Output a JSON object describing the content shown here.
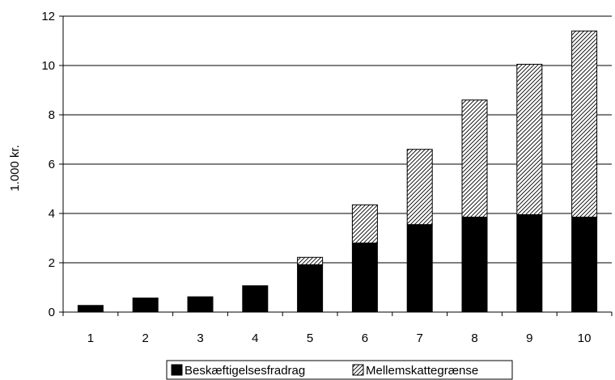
{
  "chart_data": {
    "type": "bar",
    "stacked": true,
    "categories": [
      "1",
      "2",
      "3",
      "4",
      "5",
      "6",
      "7",
      "8",
      "9",
      "10"
    ],
    "series": [
      {
        "name": "Beskæftigelsesfradrag",
        "fill": "solid",
        "color": "#000000",
        "values": [
          0.27,
          0.57,
          0.62,
          1.07,
          1.92,
          2.8,
          3.55,
          3.85,
          3.95,
          3.85
        ]
      },
      {
        "name": "Mellemskattegrænse",
        "fill": "hatched",
        "color": "#000000",
        "values": [
          0.0,
          0.0,
          0.0,
          0.0,
          0.3,
          1.55,
          3.05,
          4.75,
          6.1,
          7.55
        ]
      }
    ],
    "title": "",
    "xlabel": "",
    "ylabel": "1.000 kr.",
    "ylim": [
      0,
      12
    ],
    "yticks": [
      "0",
      "2",
      "4",
      "6",
      "8",
      "10",
      "12"
    ],
    "grid": true,
    "legend": "bottom"
  }
}
